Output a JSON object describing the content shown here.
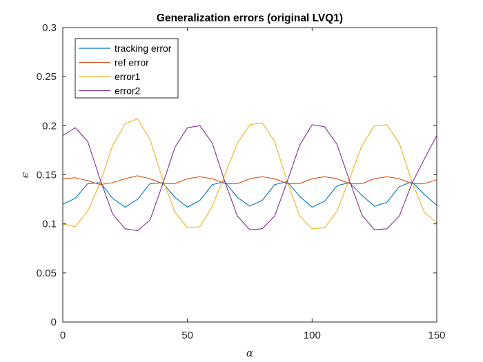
{
  "chart_data": {
    "type": "line",
    "title": "Generalization errors (original LVQ1)",
    "xlabel": "α",
    "ylabel": "ϵ",
    "xlim": [
      0,
      150
    ],
    "ylim": [
      0,
      0.3
    ],
    "xticks": [
      0,
      50,
      100,
      150
    ],
    "xtick_labels": [
      "0",
      "50",
      "100",
      "150"
    ],
    "yticks": [
      0,
      0.05,
      0.1,
      0.15,
      0.2,
      0.25,
      0.3
    ],
    "ytick_labels": [
      "0",
      "0.05",
      "0.1",
      "0.15",
      "0.2",
      "0.25",
      "0.3"
    ],
    "grid": false,
    "legend_position": "top-left",
    "x": [
      0,
      5,
      10,
      15,
      20,
      25,
      30,
      35,
      40,
      45,
      50,
      55,
      60,
      65,
      70,
      75,
      80,
      85,
      90,
      95,
      100,
      105,
      110,
      115,
      120,
      125,
      130,
      135,
      140,
      145,
      150
    ],
    "series": [
      {
        "name": "tracking error",
        "color": "#0072BD",
        "values": [
          0.12,
          0.126,
          0.141,
          0.142,
          0.126,
          0.117,
          0.125,
          0.141,
          0.142,
          0.127,
          0.117,
          0.124,
          0.14,
          0.143,
          0.127,
          0.118,
          0.124,
          0.14,
          0.143,
          0.128,
          0.117,
          0.123,
          0.139,
          0.142,
          0.129,
          0.118,
          0.122,
          0.138,
          0.143,
          0.13,
          0.119
        ]
      },
      {
        "name": "ref error",
        "color": "#D95319",
        "values": [
          0.146,
          0.147,
          0.144,
          0.14,
          0.142,
          0.146,
          0.149,
          0.146,
          0.141,
          0.141,
          0.146,
          0.148,
          0.146,
          0.141,
          0.141,
          0.146,
          0.148,
          0.146,
          0.141,
          0.141,
          0.146,
          0.148,
          0.146,
          0.141,
          0.141,
          0.146,
          0.148,
          0.146,
          0.141,
          0.141,
          0.145
        ]
      },
      {
        "name": "error1",
        "color": "#EDB120",
        "values": [
          0.1,
          0.097,
          0.113,
          0.142,
          0.18,
          0.202,
          0.207,
          0.186,
          0.146,
          0.112,
          0.096,
          0.097,
          0.118,
          0.15,
          0.182,
          0.201,
          0.203,
          0.184,
          0.143,
          0.108,
          0.095,
          0.096,
          0.113,
          0.146,
          0.18,
          0.2,
          0.201,
          0.182,
          0.143,
          0.112,
          0.101
        ]
      },
      {
        "name": "error2",
        "color": "#7E2F8E",
        "values": [
          0.19,
          0.198,
          0.184,
          0.145,
          0.11,
          0.095,
          0.093,
          0.104,
          0.14,
          0.178,
          0.198,
          0.2,
          0.182,
          0.143,
          0.108,
          0.094,
          0.095,
          0.108,
          0.143,
          0.18,
          0.201,
          0.199,
          0.181,
          0.144,
          0.109,
          0.094,
          0.095,
          0.108,
          0.141,
          0.166,
          0.19
        ]
      }
    ]
  }
}
